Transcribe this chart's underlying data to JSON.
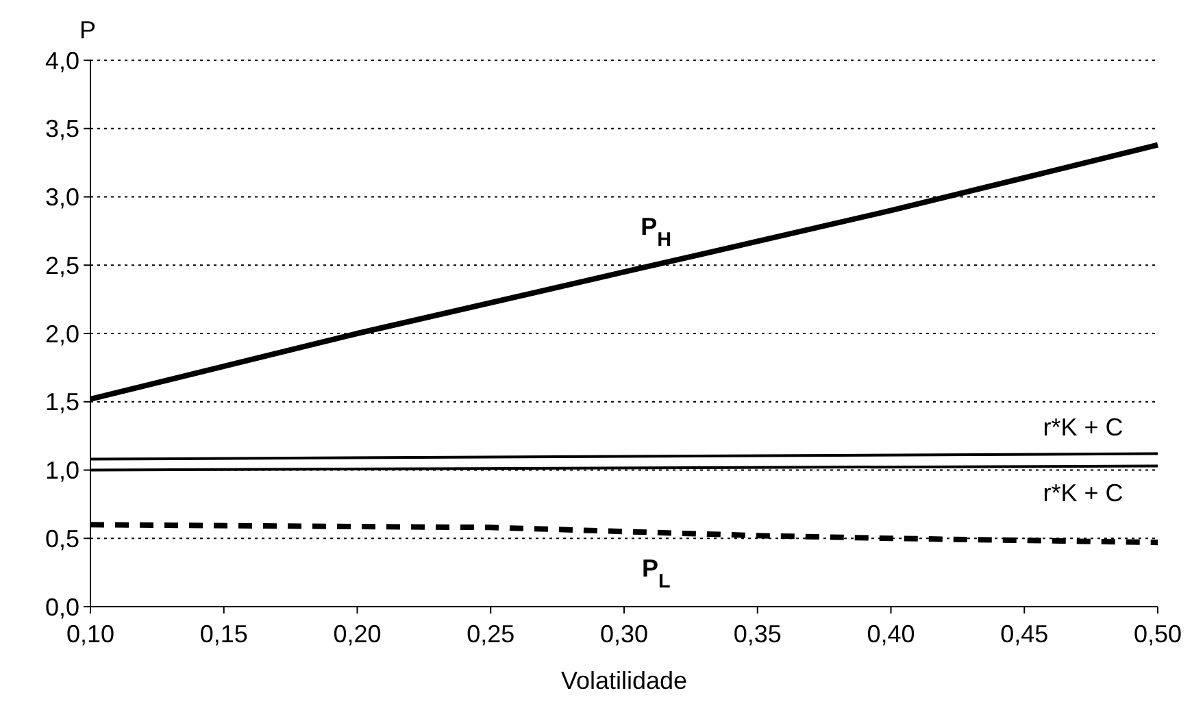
{
  "chart_data": {
    "type": "line",
    "xlabel": "Volatilidade",
    "ylabel": "P",
    "xlim": [
      0.1,
      0.5
    ],
    "ylim": [
      0,
      4
    ],
    "xticks": [
      {
        "value": 0.1,
        "label": "0,10"
      },
      {
        "value": 0.15,
        "label": "0,15"
      },
      {
        "value": 0.2,
        "label": "0,20"
      },
      {
        "value": 0.25,
        "label": "0,25"
      },
      {
        "value": 0.3,
        "label": "0,30"
      },
      {
        "value": 0.35,
        "label": "0,35"
      },
      {
        "value": 0.4,
        "label": "0,40"
      },
      {
        "value": 0.45,
        "label": "0,45"
      },
      {
        "value": 0.5,
        "label": "0,50"
      }
    ],
    "yticks": [
      {
        "value": 0,
        "label": "0,0"
      },
      {
        "value": 0.5,
        "label": "0,5"
      },
      {
        "value": 1,
        "label": "1,0"
      },
      {
        "value": 1.5,
        "label": "1,5"
      },
      {
        "value": 2,
        "label": "2,0"
      },
      {
        "value": 2.5,
        "label": "2,5"
      },
      {
        "value": 3,
        "label": "3,0"
      },
      {
        "value": 3.5,
        "label": "3,5"
      },
      {
        "value": 4,
        "label": "4,0"
      }
    ],
    "grid": "y",
    "marker": "none",
    "series": [
      {
        "name": "P$_{H}$",
        "color": "#000000",
        "x": [
          0.1,
          0.2,
          0.3,
          0.4,
          0.5
        ],
        "values": [
          1.52,
          2.0,
          2.45,
          2.9,
          3.38
        ],
        "line_style": "solid"
      },
      {
        "name": "r*K + C",
        "color": "#000000",
        "x": [
          0.1,
          0.5
        ],
        "values": [
          1.08,
          1.12
        ],
        "line_style": "solid"
      },
      {
        "name": "r*K + C",
        "color": "#000000",
        "x": [
          0.1,
          0.5
        ],
        "values": [
          1.0,
          1.03
        ],
        "line_style": "solid"
      },
      {
        "name": "P$_{L}$",
        "color": "#000000",
        "x": [
          0.1,
          0.25,
          0.3,
          0.35,
          0.4,
          0.5
        ],
        "values": [
          0.6,
          0.58,
          0.55,
          0.52,
          0.5,
          0.47
        ],
        "line_style": "dashed"
      }
    ]
  }
}
